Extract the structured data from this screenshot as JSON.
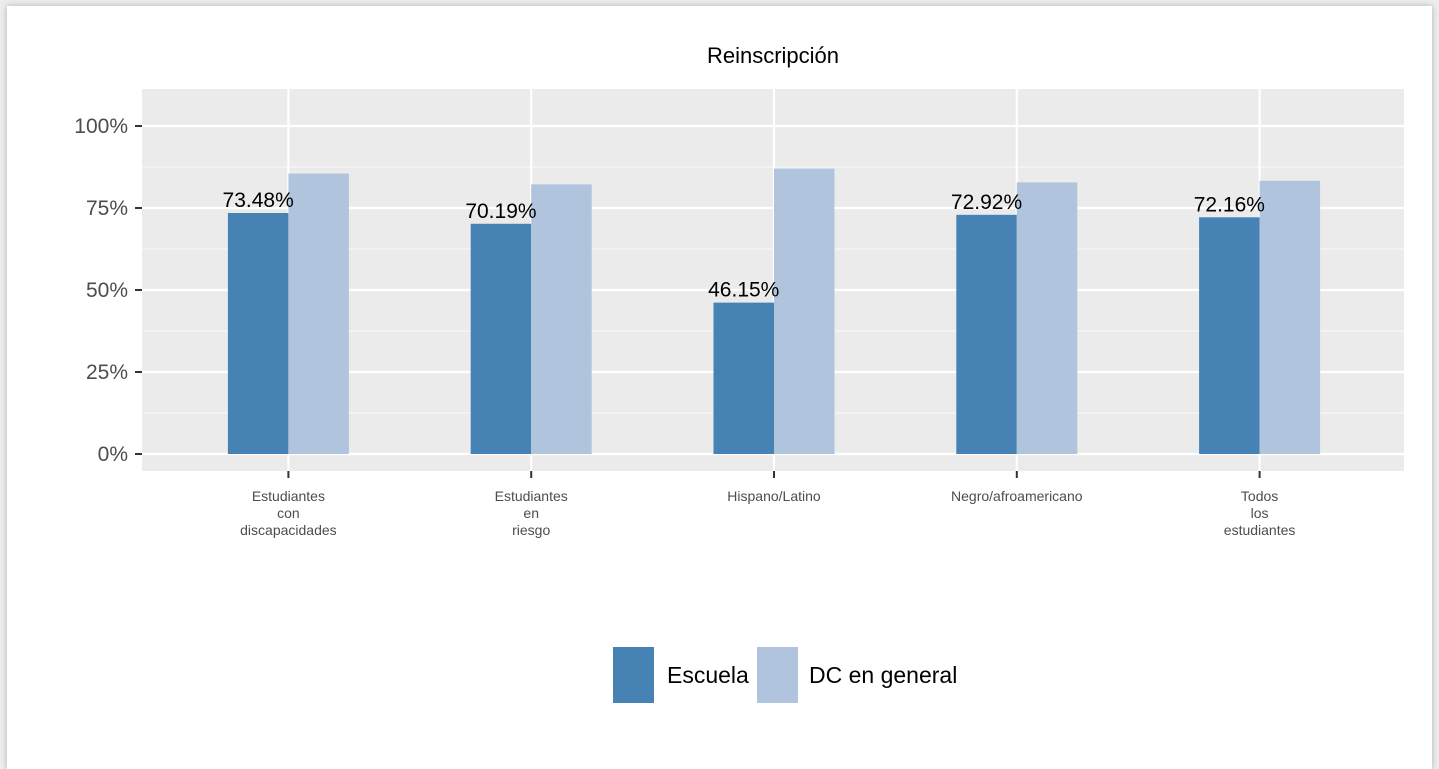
{
  "chart_data": {
    "type": "bar",
    "title": "Reinscripción",
    "xlabel": "",
    "ylabel": "",
    "ylim": [
      0,
      1.05
    ],
    "yticks": [
      {
        "value": 0,
        "label": "0%"
      },
      {
        "value": 0.25,
        "label": "25%"
      },
      {
        "value": 0.5,
        "label": "50%"
      },
      {
        "value": 0.75,
        "label": "75%"
      },
      {
        "value": 1.0,
        "label": "100%"
      }
    ],
    "categories": [
      [
        "Estudiantes",
        "con",
        "discapacidades"
      ],
      [
        "Estudiantes",
        "en",
        "riesgo"
      ],
      [
        "Hispano/Latino"
      ],
      [
        "Negro/afroamericano"
      ],
      [
        "Todos",
        "los",
        "estudiantes"
      ]
    ],
    "series": [
      {
        "name": "Escuela",
        "color": "#4682b4",
        "values": [
          0.7348,
          0.7019,
          0.4615,
          0.7292,
          0.7216
        ],
        "labels": [
          "73.48%",
          "70.19%",
          "46.15%",
          "72.92%",
          "72.16%"
        ]
      },
      {
        "name": "DC en general",
        "color": "#b0c4de",
        "values": [
          0.855,
          0.822,
          0.87,
          0.828,
          0.833
        ],
        "labels": []
      }
    ],
    "grid": true,
    "panel_background": "#ebebeb",
    "legend_position": "bottom"
  }
}
